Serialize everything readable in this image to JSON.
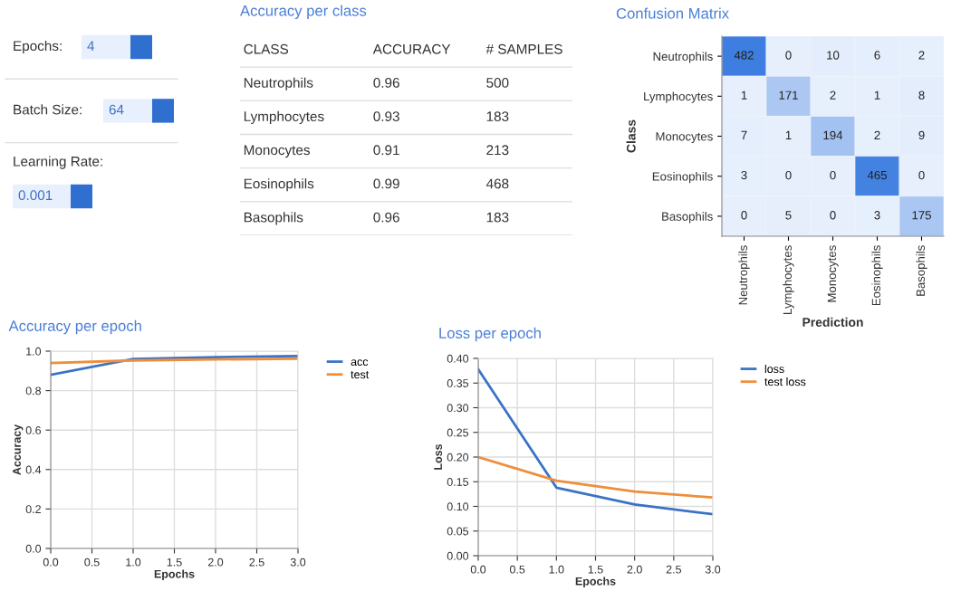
{
  "chart_data": [
    {
      "type": "other",
      "annotations": [
        "Epochs:",
        "4",
        "Batch Size:",
        "64",
        "Learning Rate:",
        "0.001"
      ]
    },
    {
      "type": "other",
      "title": "Accuracy per class",
      "annotations": [
        "CLASS"
      ],
      "categories": [
        "Neutrophils",
        "Lymphocytes",
        "Monocytes",
        "Eosinophils",
        "Basophils"
      ],
      "series": [
        {
          "name": "ACCURACY",
          "values": [
            0.96,
            0.93,
            0.91,
            0.99,
            0.96
          ]
        },
        {
          "name": "# SAMPLES",
          "values": [
            500,
            183,
            213,
            468,
            183
          ]
        }
      ],
      "data_labels": true
    },
    {
      "type": "heatmap",
      "title": "Confusion Matrix",
      "xlabel": "Prediction",
      "ylabel": "Class",
      "categories": [
        "Neutrophils",
        "Lymphocytes",
        "Monocytes",
        "Eosinophils",
        "Basophils"
      ],
      "y_categories": [
        "Neutrophils",
        "Lymphocytes",
        "Monocytes",
        "Eosinophils",
        "Basophils"
      ],
      "cells": [
        [
          482,
          0,
          10,
          6,
          2
        ],
        [
          1,
          171,
          2,
          1,
          8
        ],
        [
          7,
          1,
          194,
          2,
          9
        ],
        [
          3,
          0,
          0,
          465,
          0
        ],
        [
          0,
          5,
          0,
          3,
          175
        ]
      ],
      "data_labels": true
    },
    {
      "type": "line",
      "title": "Accuracy per epoch",
      "xlabel": "Epochs",
      "ylabel": "Accuracy",
      "x": [
        0,
        1,
        2,
        3
      ],
      "series": [
        {
          "name": "acc",
          "color": "#3b73c4",
          "values": [
            0.88,
            0.96,
            0.97,
            0.975
          ]
        },
        {
          "name": "test",
          "color": "#ee8e3c",
          "values": [
            0.94,
            0.953,
            0.958,
            0.962
          ]
        }
      ],
      "xlim": [
        0,
        3
      ],
      "xticks": [
        {
          "value": 0,
          "label": "0.0"
        },
        {
          "value": 0.5,
          "label": "0.5"
        },
        {
          "value": 1,
          "label": "1.0"
        },
        {
          "value": 1.5,
          "label": "1.5"
        },
        {
          "value": 2,
          "label": "2.0"
        },
        {
          "value": 2.5,
          "label": "2.5"
        },
        {
          "value": 3,
          "label": "3.0"
        }
      ],
      "ylim": [
        0,
        1
      ],
      "yticks": [
        {
          "value": 0,
          "label": "0.0"
        },
        {
          "value": 0.2,
          "label": "0.2"
        },
        {
          "value": 0.4,
          "label": "0.4"
        },
        {
          "value": 0.6,
          "label": "0.6"
        },
        {
          "value": 0.8,
          "label": "0.8"
        },
        {
          "value": 1,
          "label": "1.0"
        }
      ],
      "grid": true,
      "legend": "right",
      "line_style": "solid"
    },
    {
      "type": "line",
      "title": "Loss per epoch",
      "xlabel": "Epochs",
      "ylabel": "Loss",
      "x": [
        0,
        1,
        2,
        3
      ],
      "series": [
        {
          "name": "loss",
          "color": "#3b73c4",
          "values": [
            0.378,
            0.138,
            0.104,
            0.084
          ]
        },
        {
          "name": "test loss",
          "color": "#ee8e3c",
          "values": [
            0.2,
            0.152,
            0.13,
            0.118
          ]
        }
      ],
      "xlim": [
        0,
        3
      ],
      "xticks": [
        {
          "value": 0,
          "label": "0.0"
        },
        {
          "value": 0.5,
          "label": "0.5"
        },
        {
          "value": 1,
          "label": "1.0"
        },
        {
          "value": 1.5,
          "label": "1.5"
        },
        {
          "value": 2,
          "label": "2.0"
        },
        {
          "value": 2.5,
          "label": "2.5"
        },
        {
          "value": 3,
          "label": "3.0"
        }
      ],
      "ylim": [
        0,
        0.4
      ],
      "yticks": [
        {
          "value": 0,
          "label": "0.00"
        },
        {
          "value": 0.05,
          "label": "0.05"
        },
        {
          "value": 0.1,
          "label": "0.10"
        },
        {
          "value": 0.15,
          "label": "0.15"
        },
        {
          "value": 0.2,
          "label": "0.20"
        },
        {
          "value": 0.25,
          "label": "0.25"
        },
        {
          "value": 0.3,
          "label": "0.30"
        },
        {
          "value": 0.35,
          "label": "0.35"
        },
        {
          "value": 0.4,
          "label": "0.40"
        }
      ],
      "grid": true,
      "legend": "right",
      "line_style": "solid"
    }
  ]
}
